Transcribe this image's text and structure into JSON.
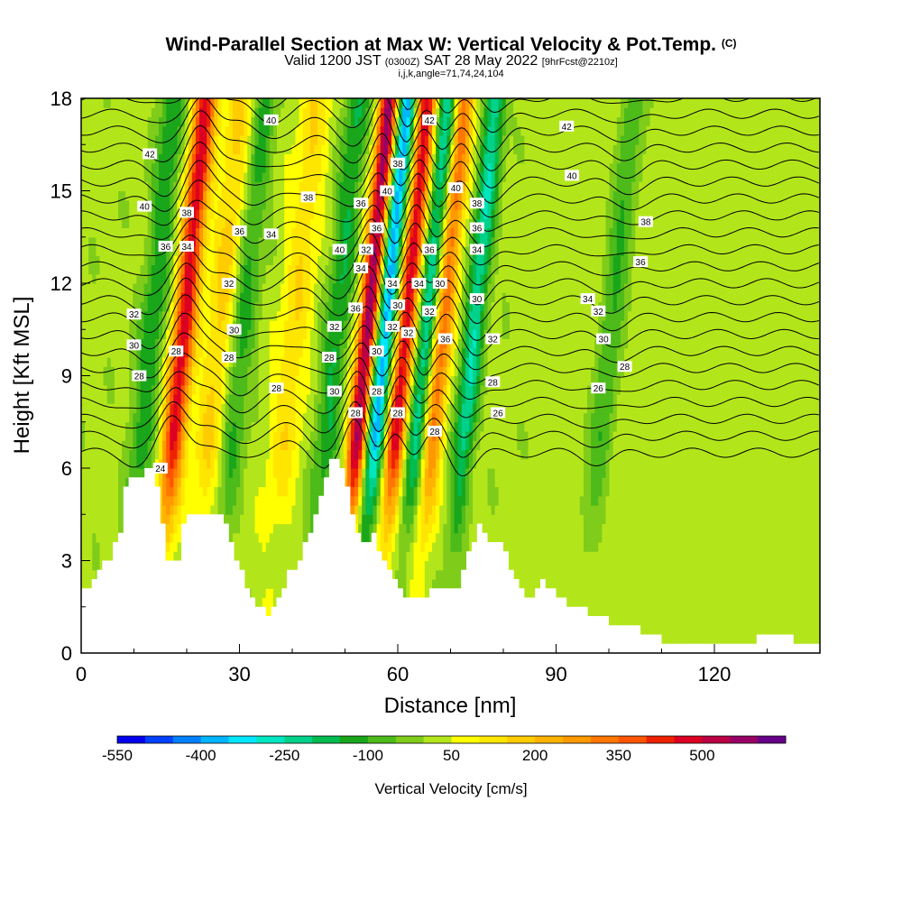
{
  "title": {
    "main": "Wind-Parallel Section at Max W: Vertical Velocity & Pot.Temp.",
    "copyright": "(C)",
    "valid_prefix": "Valid 1200 JST",
    "utc": "(0300Z)",
    "date": "SAT 28 May 2022",
    "fcst": "[9hrFcst@2210z]",
    "indices": "i,j,k,angle=71,74,24,104"
  },
  "colors": {
    "palette": [
      "#0000ee",
      "#0040ff",
      "#0080ff",
      "#00b4ff",
      "#00e6ff",
      "#00e6c0",
      "#00d28c",
      "#00bb50",
      "#1aa61a",
      "#4dbb1a",
      "#80cc1a",
      "#b3e61a",
      "#ffff00",
      "#ffe600",
      "#ffcc00",
      "#ffb300",
      "#ff9900",
      "#ff7700",
      "#ff5500",
      "#ee2200",
      "#dd0022",
      "#bb0044",
      "#990066",
      "#660088"
    ],
    "terrain": "#ffffff",
    "contour": "#000000"
  },
  "chart_data": {
    "type": "heatmap",
    "xlabel": "Distance [nm]",
    "ylabel": "Height [Kft MSL]",
    "xlim": [
      0,
      140
    ],
    "ylim": [
      0,
      18
    ],
    "xticks": [
      0,
      30,
      60,
      90,
      120
    ],
    "yticks": [
      0,
      3,
      6,
      9,
      12,
      15,
      18
    ],
    "colorbar": {
      "label": "Vertical Velocity [cm/s]",
      "ticks": [
        "-550",
        "-400",
        "-250",
        "-100",
        "50",
        "200",
        "350",
        "500"
      ],
      "range": [
        -550,
        650
      ],
      "step": 50
    },
    "features": [
      {
        "x": 17,
        "w": 460,
        "width": 2.2
      },
      {
        "x": 52,
        "w": 600,
        "width": 2.0
      },
      {
        "x": 55,
        "w": -450,
        "width": 2.2
      },
      {
        "x": 59,
        "w": 480,
        "width": 2.0
      },
      {
        "x": 63,
        "w": -280,
        "width": 2.0
      },
      {
        "x": 66,
        "w": 320,
        "width": 2.0
      },
      {
        "x": 72,
        "w": -260,
        "width": 2.0
      },
      {
        "x": 11,
        "w": -160,
        "width": 2.5
      },
      {
        "x": 28,
        "w": -150,
        "width": 2.5
      },
      {
        "x": 46,
        "w": -170,
        "width": 2.5
      },
      {
        "x": 24,
        "w": 150,
        "width": 3.0
      },
      {
        "x": 38,
        "w": 120,
        "width": 3.0
      },
      {
        "x": 98,
        "w": -120,
        "width": 2.5
      }
    ],
    "terrain_kft": [
      [
        0,
        2.0
      ],
      [
        3,
        2.7
      ],
      [
        5,
        3.1
      ],
      [
        7,
        4.0
      ],
      [
        8,
        5.5
      ],
      [
        11,
        5.8
      ],
      [
        13,
        6.0
      ],
      [
        14,
        5.4
      ],
      [
        16,
        3.0
      ],
      [
        18,
        3.0
      ],
      [
        19,
        4.3
      ],
      [
        21,
        4.6
      ],
      [
        24,
        4.5
      ],
      [
        27,
        4.3
      ],
      [
        29,
        3.0
      ],
      [
        31,
        2.2
      ],
      [
        33,
        1.5
      ],
      [
        35,
        1.3
      ],
      [
        37,
        1.8
      ],
      [
        39,
        2.6
      ],
      [
        41,
        3.0
      ],
      [
        43,
        4.0
      ],
      [
        45,
        5.0
      ],
      [
        47,
        6.2
      ],
      [
        49,
        6.1
      ],
      [
        51,
        4.5
      ],
      [
        53,
        3.5
      ],
      [
        55,
        3.8
      ],
      [
        57,
        3.0
      ],
      [
        59,
        2.4
      ],
      [
        61,
        1.8
      ],
      [
        63,
        1.7
      ],
      [
        65,
        1.9
      ],
      [
        67,
        2.2
      ],
      [
        71,
        2.2
      ],
      [
        73,
        3.2
      ],
      [
        75,
        4.2
      ],
      [
        77,
        3.6
      ],
      [
        79,
        3.6
      ],
      [
        81,
        2.8
      ],
      [
        83,
        2.0
      ],
      [
        85,
        1.8
      ],
      [
        87,
        2.3
      ],
      [
        89,
        2.0
      ],
      [
        91,
        1.7
      ],
      [
        93,
        1.5
      ],
      [
        96,
        1.3
      ],
      [
        100,
        1.0
      ],
      [
        104,
        0.9
      ],
      [
        106,
        0.6
      ],
      [
        110,
        0.4
      ],
      [
        115,
        0.3
      ],
      [
        121,
        0.3
      ],
      [
        127,
        0.3
      ],
      [
        128,
        0.6
      ],
      [
        134,
        0.6
      ],
      [
        135,
        0.3
      ],
      [
        140,
        0.3
      ]
    ],
    "theta_levels": [
      24,
      26,
      28,
      30,
      32,
      34,
      36,
      38,
      40,
      42
    ],
    "contour_labels": [
      {
        "x": 15,
        "y": 6.0,
        "label": "24"
      },
      {
        "x": 11,
        "y": 9.0,
        "label": "28"
      },
      {
        "x": 10,
        "y": 10.0,
        "label": "30"
      },
      {
        "x": 10,
        "y": 11.0,
        "label": "32"
      },
      {
        "x": 12,
        "y": 14.5,
        "label": "40"
      },
      {
        "x": 13,
        "y": 16.2,
        "label": "42"
      },
      {
        "x": 18,
        "y": 9.8,
        "label": "28"
      },
      {
        "x": 16,
        "y": 13.2,
        "label": "36"
      },
      {
        "x": 20,
        "y": 13.2,
        "label": "34"
      },
      {
        "x": 20,
        "y": 14.3,
        "label": "38"
      },
      {
        "x": 28,
        "y": 9.6,
        "label": "28"
      },
      {
        "x": 29,
        "y": 10.5,
        "label": "30"
      },
      {
        "x": 28,
        "y": 12.0,
        "label": "32"
      },
      {
        "x": 30,
        "y": 13.7,
        "label": "36"
      },
      {
        "x": 36,
        "y": 13.6,
        "label": "34"
      },
      {
        "x": 37,
        "y": 8.6,
        "label": "28"
      },
      {
        "x": 36,
        "y": 17.3,
        "label": "40"
      },
      {
        "x": 43,
        "y": 14.8,
        "label": "38"
      },
      {
        "x": 47,
        "y": 9.6,
        "label": "28"
      },
      {
        "x": 48,
        "y": 8.5,
        "label": "30"
      },
      {
        "x": 48,
        "y": 10.6,
        "label": "32"
      },
      {
        "x": 49,
        "y": 13.1,
        "label": "40"
      },
      {
        "x": 52,
        "y": 11.2,
        "label": "36"
      },
      {
        "x": 52,
        "y": 7.8,
        "label": "28"
      },
      {
        "x": 53,
        "y": 12.5,
        "label": "34"
      },
      {
        "x": 53,
        "y": 14.6,
        "label": "36"
      },
      {
        "x": 54,
        "y": 13.1,
        "label": "32"
      },
      {
        "x": 56,
        "y": 9.8,
        "label": "30"
      },
      {
        "x": 56,
        "y": 8.5,
        "label": "28"
      },
      {
        "x": 56,
        "y": 13.8,
        "label": "36"
      },
      {
        "x": 58,
        "y": 15.0,
        "label": "40"
      },
      {
        "x": 59,
        "y": 12.0,
        "label": "34"
      },
      {
        "x": 59,
        "y": 10.6,
        "label": "32"
      },
      {
        "x": 60,
        "y": 11.3,
        "label": "30"
      },
      {
        "x": 60,
        "y": 7.8,
        "label": "28"
      },
      {
        "x": 60,
        "y": 15.9,
        "label": "38"
      },
      {
        "x": 62,
        "y": 10.4,
        "label": "32"
      },
      {
        "x": 64,
        "y": 12.0,
        "label": "34"
      },
      {
        "x": 66,
        "y": 17.3,
        "label": "42"
      },
      {
        "x": 66,
        "y": 11.1,
        "label": "32"
      },
      {
        "x": 66,
        "y": 13.1,
        "label": "36"
      },
      {
        "x": 67,
        "y": 7.2,
        "label": "28"
      },
      {
        "x": 68,
        "y": 12.0,
        "label": "30"
      },
      {
        "x": 69,
        "y": 10.2,
        "label": "36"
      },
      {
        "x": 71,
        "y": 15.1,
        "label": "40"
      },
      {
        "x": 75,
        "y": 14.6,
        "label": "38"
      },
      {
        "x": 75,
        "y": 13.8,
        "label": "36"
      },
      {
        "x": 75,
        "y": 13.1,
        "label": "34"
      },
      {
        "x": 75,
        "y": 11.5,
        "label": "30"
      },
      {
        "x": 78,
        "y": 10.2,
        "label": "32"
      },
      {
        "x": 78,
        "y": 8.8,
        "label": "28"
      },
      {
        "x": 79,
        "y": 7.8,
        "label": "26"
      },
      {
        "x": 92,
        "y": 17.1,
        "label": "42"
      },
      {
        "x": 93,
        "y": 15.5,
        "label": "40"
      },
      {
        "x": 96,
        "y": 11.5,
        "label": "34"
      },
      {
        "x": 98,
        "y": 11.1,
        "label": "32"
      },
      {
        "x": 99,
        "y": 10.2,
        "label": "30"
      },
      {
        "x": 98,
        "y": 8.6,
        "label": "26"
      },
      {
        "x": 103,
        "y": 9.3,
        "label": "28"
      },
      {
        "x": 107,
        "y": 14.0,
        "label": "38"
      },
      {
        "x": 106,
        "y": 12.7,
        "label": "36"
      }
    ]
  }
}
